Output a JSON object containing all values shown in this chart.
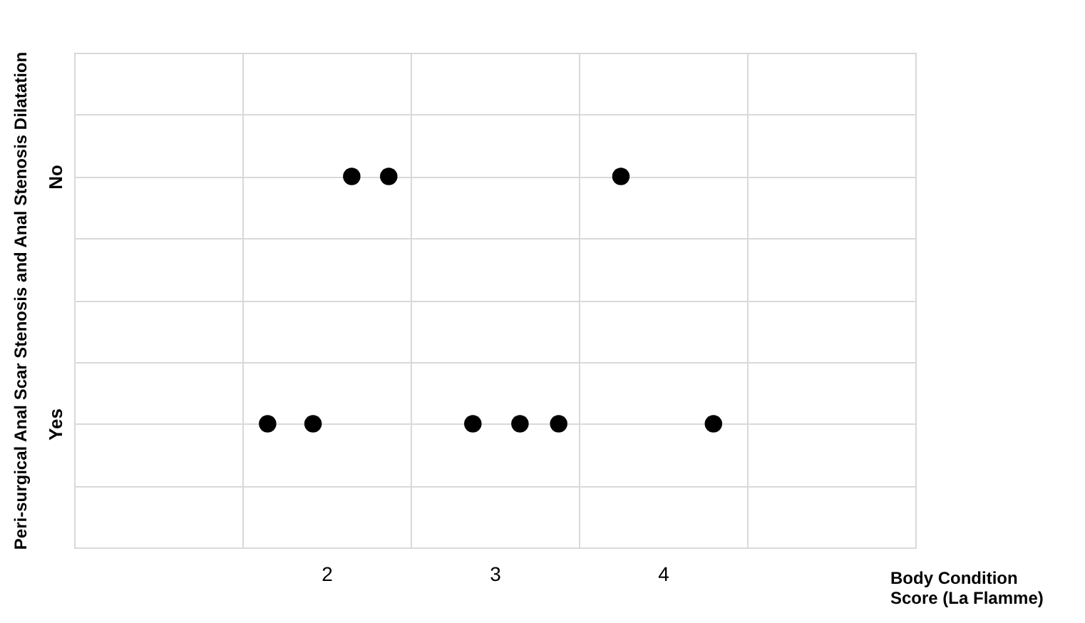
{
  "chart_data": {
    "type": "scatter",
    "orientation": "horizontal",
    "xlabel": "Body Condition Score (La Flamme)",
    "ylabel": "Peri-surgical Anal Scar Stenosis and Anal Stenosis Dilatation",
    "categories": [
      null,
      null,
      "No",
      null,
      null,
      null,
      "Yes",
      null,
      null
    ],
    "series": [
      {
        "color": "#000000",
        "values": [
          null,
          null,
          2.15,
          null,
          null,
          null,
          1.65,
          null,
          null
        ]
      },
      {
        "color": "#000000",
        "values": [
          null,
          null,
          2.37,
          null,
          null,
          null,
          1.92,
          null,
          null
        ]
      },
      {
        "color": "#000000",
        "values": [
          null,
          null,
          3.75,
          null,
          null,
          null,
          2.87,
          null,
          null
        ]
      },
      {
        "color": "#000000",
        "values": [
          null,
          null,
          null,
          null,
          null,
          null,
          3.15,
          null,
          null
        ]
      },
      {
        "color": "#000000",
        "values": [
          null,
          null,
          null,
          null,
          null,
          null,
          3.38,
          null,
          null
        ]
      },
      {
        "color": "#000000",
        "values": [
          null,
          null,
          null,
          null,
          null,
          null,
          4.3,
          null,
          null
        ]
      }
    ],
    "xlim": [
      0.5,
      5.5
    ],
    "xticks": [
      {
        "value": 0.5,
        "label": null
      },
      {
        "value": 1.5,
        "label": null
      },
      {
        "value": 2,
        "label": "2"
      },
      {
        "value": 2.5,
        "label": null
      },
      {
        "value": 3,
        "label": "3"
      },
      {
        "value": 3.5,
        "label": null
      },
      {
        "value": 4,
        "label": "4"
      },
      {
        "value": 4.5,
        "label": null
      },
      {
        "value": 5.5,
        "label": null
      }
    ],
    "grid": true,
    "marker": "circle"
  }
}
